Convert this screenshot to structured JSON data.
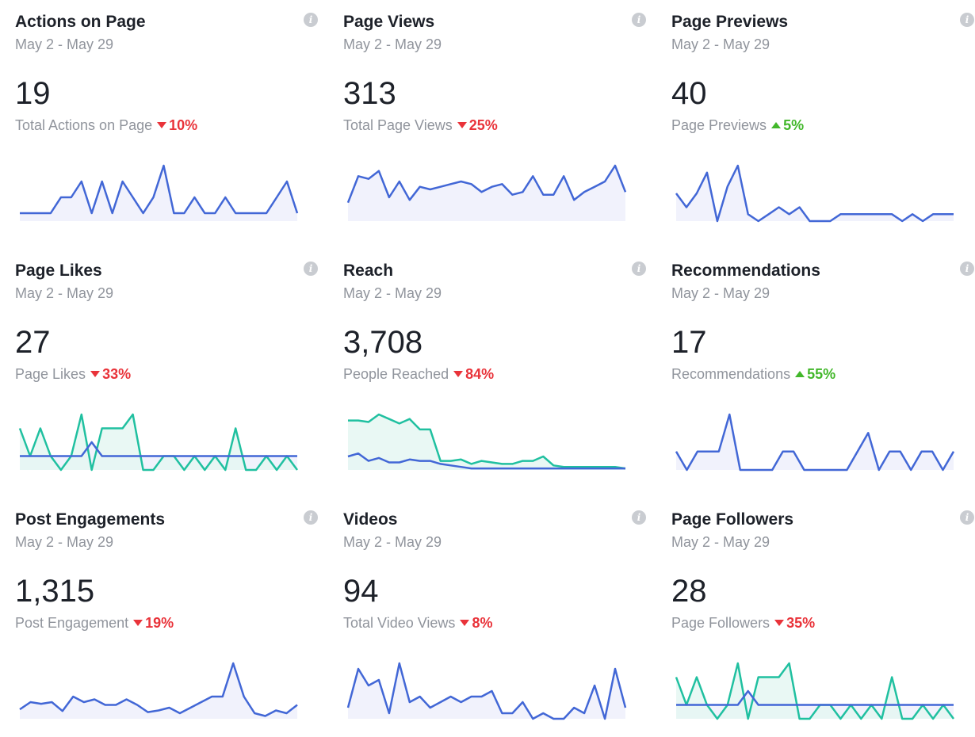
{
  "colors": {
    "blue": "#4267d6",
    "blue_fill": "#eef0fb",
    "teal": "#20c0a0",
    "teal_fill": "#e5f7f2",
    "down": "#e9333a",
    "up": "#42b72a"
  },
  "cards": [
    {
      "title": "Actions on Page",
      "date": "May 2 - May 29",
      "value": "19",
      "sub": "Total Actions on Page",
      "change": "10%",
      "dir": "down",
      "info_icon": "i",
      "series": [
        {
          "color": "blue",
          "values": [
            1,
            1,
            1,
            1,
            3,
            3,
            5,
            1,
            5,
            1,
            5,
            3,
            1,
            3,
            7,
            1,
            1,
            3,
            1,
            1,
            3,
            1,
            1,
            1,
            1,
            3,
            5,
            1
          ]
        }
      ]
    },
    {
      "title": "Page Views",
      "date": "May 2 - May 29",
      "value": "313",
      "sub": "Total Page Views",
      "change": "25%",
      "dir": "down",
      "info_icon": "i",
      "series": [
        {
          "color": "blue",
          "values": [
            7,
            17,
            16,
            19,
            9,
            15,
            8,
            13,
            12,
            13,
            14,
            15,
            14,
            11,
            13,
            14,
            10,
            11,
            17,
            10,
            10,
            17,
            8,
            11,
            13,
            15,
            21,
            11
          ]
        }
      ]
    },
    {
      "title": "Page Previews",
      "date": "May 2 - May 29",
      "value": "40",
      "sub": "Page Previews",
      "change": "5%",
      "dir": "up",
      "info_icon": "i",
      "series": [
        {
          "color": "blue",
          "values": [
            4,
            2,
            4,
            7,
            0,
            5,
            8,
            1,
            0,
            1,
            2,
            1,
            2,
            0,
            0,
            0,
            1,
            1,
            1,
            1,
            1,
            1,
            0,
            1,
            0,
            1,
            1,
            1
          ]
        }
      ]
    },
    {
      "title": "Page Likes",
      "date": "May 2 - May 29",
      "value": "27",
      "sub": "Page Likes",
      "change": "33%",
      "dir": "down",
      "info_icon": "i",
      "series": [
        {
          "color": "blue",
          "values": [
            1,
            1,
            1,
            1,
            1,
            1,
            1,
            2,
            1,
            1,
            1,
            1,
            1,
            1,
            1,
            1,
            1,
            1,
            1,
            1,
            1,
            1,
            1,
            1,
            1,
            1,
            1,
            1
          ]
        },
        {
          "color": "teal",
          "values": [
            3,
            1,
            3,
            1,
            0,
            1,
            4,
            0,
            3,
            3,
            3,
            4,
            0,
            0,
            1,
            1,
            0,
            1,
            0,
            1,
            0,
            3,
            0,
            0,
            1,
            0,
            1,
            0
          ]
        }
      ]
    },
    {
      "title": "Reach",
      "date": "May 2 - May 29",
      "value": "3,708",
      "sub": "People Reached",
      "change": "84%",
      "dir": "down",
      "info_icon": "i",
      "series": [
        {
          "color": "blue",
          "values": [
            9,
            11,
            6,
            8,
            5,
            5,
            7,
            6,
            6,
            4,
            3,
            2,
            1,
            1,
            1,
            1,
            1,
            1,
            1,
            1,
            1,
            1,
            1,
            1,
            1,
            1,
            1,
            1
          ]
        },
        {
          "color": "teal",
          "values": [
            33,
            33,
            32,
            37,
            34,
            31,
            34,
            27,
            27,
            6,
            6,
            7,
            4,
            6,
            5,
            4,
            4,
            6,
            6,
            9,
            3,
            2,
            2,
            2,
            2,
            2,
            2,
            1
          ]
        }
      ]
    },
    {
      "title": "Recommendations",
      "date": "May 2 - May 29",
      "value": "17",
      "sub": "Recommendations",
      "change": "55%",
      "dir": "up",
      "info_icon": "i",
      "series": [
        {
          "color": "blue",
          "values": [
            1,
            0,
            1,
            1,
            1,
            3,
            0,
            0,
            0,
            0,
            1,
            1,
            0,
            0,
            0,
            0,
            0,
            1,
            2,
            0,
            1,
            1,
            0,
            1,
            1,
            0,
            1
          ]
        }
      ]
    },
    {
      "title": "Post Engagements",
      "date": "May 2 - May 29",
      "value": "1,315",
      "sub": "Post Engagement",
      "change": "19%",
      "dir": "down",
      "info_icon": "i",
      "series": [
        {
          "color": "blue",
          "values": [
            17,
            30,
            27,
            30,
            14,
            40,
            30,
            35,
            25,
            25,
            35,
            25,
            12,
            15,
            20,
            10,
            20,
            30,
            40,
            40,
            100,
            40,
            10,
            5,
            15,
            10,
            25
          ]
        }
      ]
    },
    {
      "title": "Videos",
      "date": "May 2 - May 29",
      "value": "94",
      "sub": "Total Video Views",
      "change": "8%",
      "dir": "down",
      "info_icon": "i",
      "series": [
        {
          "color": "blue",
          "values": [
            2,
            9,
            6,
            7,
            1,
            10,
            3,
            4,
            2,
            3,
            4,
            3,
            4,
            4,
            5,
            1,
            1,
            3,
            0,
            1,
            0,
            0,
            2,
            1,
            6,
            0,
            9,
            2
          ]
        }
      ]
    },
    {
      "title": "Page Followers",
      "date": "May 2 - May 29",
      "value": "28",
      "sub": "Page Followers",
      "change": "35%",
      "dir": "down",
      "info_icon": "i",
      "series": [
        {
          "color": "blue",
          "values": [
            1,
            1,
            1,
            1,
            1,
            1,
            1,
            2,
            1,
            1,
            1,
            1,
            1,
            1,
            1,
            1,
            1,
            1,
            1,
            1,
            1,
            1,
            1,
            1,
            1,
            1,
            1,
            1
          ]
        },
        {
          "color": "teal",
          "values": [
            3,
            1,
            3,
            1,
            0,
            1,
            4,
            0,
            3,
            3,
            3,
            4,
            0,
            0,
            1,
            1,
            0,
            1,
            0,
            1,
            0,
            3,
            0,
            0,
            1,
            0,
            1,
            0
          ]
        }
      ]
    }
  ]
}
